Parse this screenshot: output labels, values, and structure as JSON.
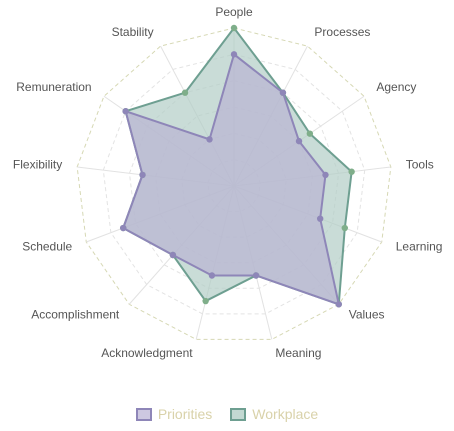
{
  "chart_data": {
    "type": "radar",
    "axes": [
      "People",
      "Processes",
      "Agency",
      "Tools",
      "Learning",
      "Values",
      "Meaning",
      "Acknowledgment",
      "Accomplishment",
      "Schedule",
      "Flexibility",
      "Remuneration",
      "Stability"
    ],
    "rlim": [
      0,
      6
    ],
    "grid": "dashed-polygon",
    "legend_position": "bottom",
    "series": [
      {
        "name": "Priorities",
        "color": "#8e86b8",
        "fill": "#b9b3d3",
        "values": [
          5,
          4,
          3,
          3.5,
          3.5,
          6,
          3.5,
          3.5,
          3.5,
          4.5,
          3.5,
          5,
          2
        ]
      },
      {
        "name": "Workplace",
        "color": "#6e9f91",
        "fill": "#b2cdc6",
        "values": [
          6,
          4,
          3.5,
          4.5,
          4.5,
          6,
          3.5,
          4.5,
          3.5,
          4.5,
          3.5,
          5,
          4
        ]
      }
    ]
  },
  "legend": {
    "label_color": "#d9d2aa"
  }
}
